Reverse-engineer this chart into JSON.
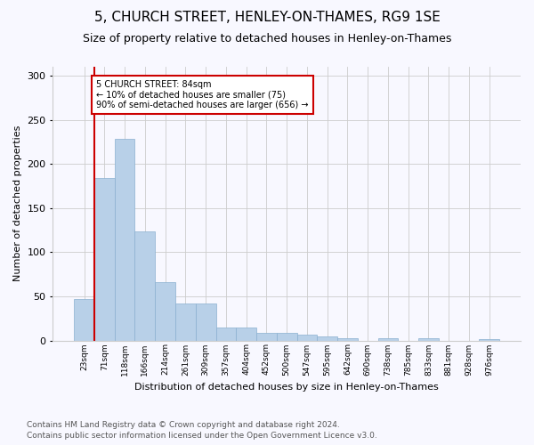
{
  "title": "5, CHURCH STREET, HENLEY-ON-THAMES, RG9 1SE",
  "subtitle": "Size of property relative to detached houses in Henley-on-Thames",
  "xlabel": "Distribution of detached houses by size in Henley-on-Thames",
  "ylabel": "Number of detached properties",
  "categories": [
    "23sqm",
    "71sqm",
    "118sqm",
    "166sqm",
    "214sqm",
    "261sqm",
    "309sqm",
    "357sqm",
    "404sqm",
    "452sqm",
    "500sqm",
    "547sqm",
    "595sqm",
    "642sqm",
    "690sqm",
    "738sqm",
    "785sqm",
    "833sqm",
    "881sqm",
    "928sqm",
    "976sqm"
  ],
  "values": [
    47,
    184,
    228,
    124,
    66,
    42,
    42,
    15,
    15,
    9,
    9,
    7,
    5,
    3,
    0,
    3,
    0,
    3,
    0,
    0,
    2
  ],
  "bar_color": "#b8d0e8",
  "bar_edge_color": "#8ab0d0",
  "annotation_text": "5 CHURCH STREET: 84sqm\n← 10% of detached houses are smaller (75)\n90% of semi-detached houses are larger (656) →",
  "annotation_box_color": "#ffffff",
  "annotation_box_edge_color": "#cc0000",
  "vline_x": 1.0,
  "vline_color": "#cc0000",
  "ylim": [
    0,
    310
  ],
  "yticks": [
    0,
    50,
    100,
    150,
    200,
    250,
    300
  ],
  "footer1": "Contains HM Land Registry data © Crown copyright and database right 2024.",
  "footer2": "Contains public sector information licensed under the Open Government Licence v3.0.",
  "title_fontsize": 11,
  "subtitle_fontsize": 9,
  "footer_fontsize": 6.5,
  "bg_color": "#f8f8ff"
}
